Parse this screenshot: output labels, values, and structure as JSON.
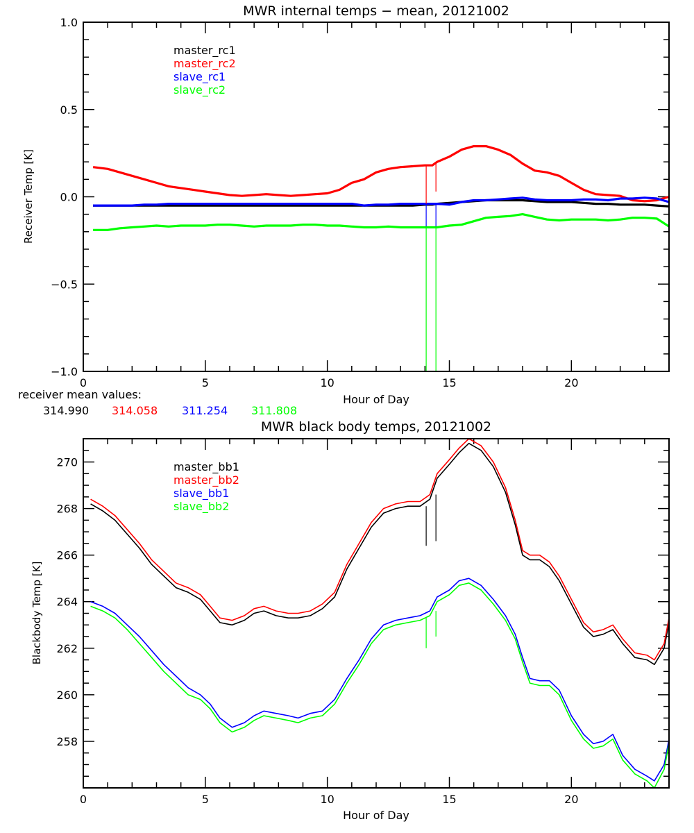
{
  "chart_data": [
    {
      "type": "line",
      "title": "MWR internal temps − mean, 20121002",
      "xlabel": "Hour of Day",
      "ylabel": "Receiver Temp [K]",
      "xlim": [
        0,
        24
      ],
      "ylim": [
        -1.0,
        1.0
      ],
      "xticks": [
        "0",
        "5",
        "10",
        "15",
        "20"
      ],
      "xtick_values": [
        0,
        5,
        10,
        15,
        20
      ],
      "yticks": [
        "1.0",
        "0.5",
        "0.0",
        "−0.5",
        "−1.0"
      ],
      "ytick_values": [
        1.0,
        0.5,
        0.0,
        -0.5,
        -1.0
      ],
      "legend_placement": "top-left",
      "grid": false,
      "x": [
        0.4,
        1,
        1.5,
        2,
        2.5,
        3,
        3.5,
        4,
        4.5,
        5,
        5.5,
        6,
        6.5,
        7,
        7.5,
        8,
        8.5,
        9,
        9.5,
        10,
        10.5,
        11,
        11.5,
        12,
        12.5,
        13,
        13.5,
        14,
        14.3,
        14.5,
        15,
        15.5,
        16,
        16.5,
        17,
        17.5,
        18,
        18.5,
        19,
        19.5,
        20,
        20.5,
        21,
        21.5,
        22,
        22.5,
        23,
        23.5,
        24
      ],
      "series": [
        {
          "name": "master_rc1",
          "color": "#000000",
          "values": [
            -0.05,
            -0.05,
            -0.05,
            -0.05,
            -0.05,
            -0.05,
            -0.05,
            -0.05,
            -0.05,
            -0.05,
            -0.05,
            -0.05,
            -0.05,
            -0.05,
            -0.05,
            -0.05,
            -0.05,
            -0.05,
            -0.05,
            -0.05,
            -0.05,
            -0.05,
            -0.05,
            -0.05,
            -0.05,
            -0.05,
            -0.05,
            -0.045,
            -0.045,
            -0.04,
            -0.035,
            -0.03,
            -0.025,
            -0.02,
            -0.02,
            -0.02,
            -0.02,
            -0.025,
            -0.03,
            -0.03,
            -0.03,
            -0.035,
            -0.04,
            -0.04,
            -0.045,
            -0.045,
            -0.045,
            -0.05,
            -0.055
          ]
        },
        {
          "name": "master_rc2",
          "color": "#ff0000",
          "values": [
            0.17,
            0.16,
            0.14,
            0.12,
            0.1,
            0.08,
            0.06,
            0.05,
            0.04,
            0.03,
            0.02,
            0.01,
            0.005,
            0.01,
            0.015,
            0.01,
            0.005,
            0.01,
            0.015,
            0.02,
            0.04,
            0.08,
            0.1,
            0.14,
            0.16,
            0.17,
            0.175,
            0.18,
            0.18,
            0.2,
            0.23,
            0.27,
            0.29,
            0.29,
            0.27,
            0.24,
            0.19,
            0.15,
            0.14,
            0.12,
            0.08,
            0.04,
            0.015,
            0.01,
            0.005,
            -0.02,
            -0.025,
            -0.02,
            0.0
          ]
        },
        {
          "name": "slave_rc1",
          "color": "#0000ff",
          "values": [
            -0.05,
            -0.05,
            -0.05,
            -0.05,
            -0.045,
            -0.045,
            -0.04,
            -0.04,
            -0.04,
            -0.04,
            -0.04,
            -0.04,
            -0.04,
            -0.04,
            -0.04,
            -0.04,
            -0.04,
            -0.04,
            -0.04,
            -0.04,
            -0.04,
            -0.04,
            -0.05,
            -0.045,
            -0.045,
            -0.04,
            -0.04,
            -0.04,
            -0.04,
            -0.04,
            -0.045,
            -0.03,
            -0.02,
            -0.02,
            -0.015,
            -0.01,
            -0.005,
            -0.015,
            -0.02,
            -0.02,
            -0.02,
            -0.015,
            -0.015,
            -0.02,
            -0.01,
            -0.01,
            -0.005,
            -0.01,
            -0.03
          ]
        },
        {
          "name": "slave_rc2",
          "color": "#00ff00",
          "values": [
            -0.19,
            -0.19,
            -0.18,
            -0.175,
            -0.17,
            -0.165,
            -0.17,
            -0.165,
            -0.165,
            -0.165,
            -0.16,
            -0.16,
            -0.165,
            -0.17,
            -0.165,
            -0.165,
            -0.165,
            -0.16,
            -0.16,
            -0.165,
            -0.165,
            -0.17,
            -0.175,
            -0.175,
            -0.17,
            -0.175,
            -0.175,
            -0.175,
            -0.175,
            -0.175,
            -0.165,
            -0.16,
            -0.14,
            -0.12,
            -0.115,
            -0.11,
            -0.1,
            -0.115,
            -0.13,
            -0.135,
            -0.13,
            -0.13,
            -0.13,
            -0.135,
            -0.13,
            -0.12,
            -0.12,
            -0.125,
            -0.17
          ]
        }
      ],
      "spikes": [
        {
          "x": 14.05,
          "series": "master_rc2",
          "from": 0.18,
          "to": -0.04
        },
        {
          "x": 14.45,
          "series": "master_rc2",
          "from": 0.2,
          "to": 0.03
        },
        {
          "x": 14.05,
          "series": "slave_rc1",
          "from": -0.04,
          "to": -0.17
        },
        {
          "x": 14.45,
          "series": "slave_rc1",
          "from": -0.04,
          "to": -0.17
        },
        {
          "x": 14.05,
          "series": "slave_rc2",
          "from": -0.175,
          "to": -1.0
        },
        {
          "x": 14.45,
          "series": "slave_rc2",
          "from": -0.175,
          "to": -1.0
        }
      ]
    },
    {
      "type": "line",
      "title": "MWR black body temps, 20121002",
      "xlabel": "Hour of Day",
      "ylabel": "Blackbody Temp [K]",
      "xlim": [
        0,
        24
      ],
      "ylim": [
        256.0,
        271.0
      ],
      "xticks": [
        "0",
        "5",
        "10",
        "15",
        "20"
      ],
      "xtick_values": [
        0,
        5,
        10,
        15,
        20
      ],
      "yticks": [
        "270",
        "268",
        "266",
        "264",
        "262",
        "260",
        "258"
      ],
      "ytick_values": [
        270,
        268,
        266,
        264,
        262,
        260,
        258
      ],
      "legend_placement": "top-left",
      "grid": false,
      "x": [
        0.3,
        0.8,
        1.3,
        1.8,
        2.3,
        2.8,
        3.3,
        3.8,
        4.3,
        4.8,
        5.2,
        5.6,
        6.1,
        6.6,
        7.0,
        7.4,
        7.9,
        8.4,
        8.8,
        9.3,
        9.8,
        10.3,
        10.8,
        11.3,
        11.8,
        12.3,
        12.8,
        13.3,
        13.8,
        14.2,
        14.5,
        15.0,
        15.4,
        15.8,
        16.3,
        16.8,
        17.3,
        17.7,
        18.0,
        18.3,
        18.7,
        19.1,
        19.5,
        20.0,
        20.5,
        20.9,
        21.3,
        21.7,
        22.1,
        22.6,
        23.1,
        23.4,
        23.8,
        24.0
      ],
      "series": [
        {
          "name": "master_bb1",
          "color": "#000000",
          "values": [
            268.2,
            267.9,
            267.5,
            266.9,
            266.3,
            265.6,
            265.1,
            264.6,
            264.4,
            264.1,
            263.6,
            263.1,
            263.0,
            263.2,
            263.5,
            263.6,
            263.4,
            263.3,
            263.3,
            263.4,
            263.7,
            264.2,
            265.4,
            266.3,
            267.2,
            267.8,
            268.0,
            268.1,
            268.1,
            268.4,
            269.3,
            269.9,
            270.4,
            270.8,
            270.5,
            269.8,
            268.7,
            267.3,
            266.0,
            265.8,
            265.8,
            265.5,
            264.9,
            263.9,
            262.9,
            262.5,
            262.6,
            262.8,
            262.2,
            261.6,
            261.5,
            261.3,
            262.0,
            263.1
          ]
        },
        {
          "name": "master_bb2",
          "color": "#ff0000",
          "values": [
            268.4,
            268.1,
            267.7,
            267.1,
            266.5,
            265.8,
            265.3,
            264.8,
            264.6,
            264.3,
            263.8,
            263.3,
            263.2,
            263.4,
            263.7,
            263.8,
            263.6,
            263.5,
            263.5,
            263.6,
            263.9,
            264.4,
            265.6,
            266.5,
            267.4,
            268.0,
            268.2,
            268.3,
            268.3,
            268.6,
            269.5,
            270.1,
            270.6,
            271.0,
            270.7,
            270.0,
            268.9,
            267.5,
            266.2,
            266.0,
            266.0,
            265.7,
            265.1,
            264.1,
            263.1,
            262.7,
            262.8,
            263.0,
            262.4,
            261.8,
            261.7,
            261.5,
            262.2,
            263.3
          ]
        },
        {
          "name": "slave_bb1",
          "color": "#0000ff",
          "values": [
            264.0,
            263.8,
            263.5,
            263.0,
            262.5,
            261.9,
            261.3,
            260.8,
            260.3,
            260.0,
            259.6,
            259.0,
            258.6,
            258.8,
            259.1,
            259.3,
            259.2,
            259.1,
            259.0,
            259.2,
            259.3,
            259.8,
            260.7,
            261.5,
            262.4,
            263.0,
            263.2,
            263.3,
            263.4,
            263.6,
            264.2,
            264.5,
            264.9,
            265.0,
            264.7,
            264.1,
            263.4,
            262.6,
            261.6,
            260.7,
            260.6,
            260.6,
            260.2,
            259.1,
            258.3,
            257.9,
            258.0,
            258.3,
            257.4,
            256.8,
            256.5,
            256.3,
            257.0,
            258.1
          ]
        },
        {
          "name": "slave_bb2",
          "color": "#00ff00",
          "values": [
            263.8,
            263.6,
            263.3,
            262.8,
            262.2,
            261.6,
            261.0,
            260.5,
            260.0,
            259.8,
            259.4,
            258.8,
            258.4,
            258.6,
            258.9,
            259.1,
            259.0,
            258.9,
            258.8,
            259.0,
            259.1,
            259.6,
            260.5,
            261.3,
            262.2,
            262.8,
            263.0,
            263.1,
            263.2,
            263.4,
            264.0,
            264.3,
            264.7,
            264.8,
            264.5,
            263.9,
            263.2,
            262.4,
            261.4,
            260.5,
            260.4,
            260.4,
            260.0,
            258.9,
            258.1,
            257.7,
            257.8,
            258.1,
            257.2,
            256.6,
            256.3,
            256.0,
            256.8,
            257.9
          ]
        }
      ],
      "spikes": [
        {
          "x": 14.05,
          "series": "master_bb1",
          "from": 268.1,
          "to": 266.4
        },
        {
          "x": 14.45,
          "series": "master_bb1",
          "from": 268.6,
          "to": 266.6
        },
        {
          "x": 14.05,
          "series": "slave_bb2",
          "from": 263.3,
          "to": 262.0
        },
        {
          "x": 14.45,
          "series": "slave_bb2",
          "from": 263.6,
          "to": 262.5
        }
      ]
    }
  ],
  "receiver_mean": {
    "label": "receiver mean values:",
    "values": [
      {
        "text": "314.990",
        "color": "#000000"
      },
      {
        "text": "314.058",
        "color": "#ff0000"
      },
      {
        "text": "311.254",
        "color": "#0000ff"
      },
      {
        "text": "311.808",
        "color": "#00ff00"
      }
    ]
  }
}
